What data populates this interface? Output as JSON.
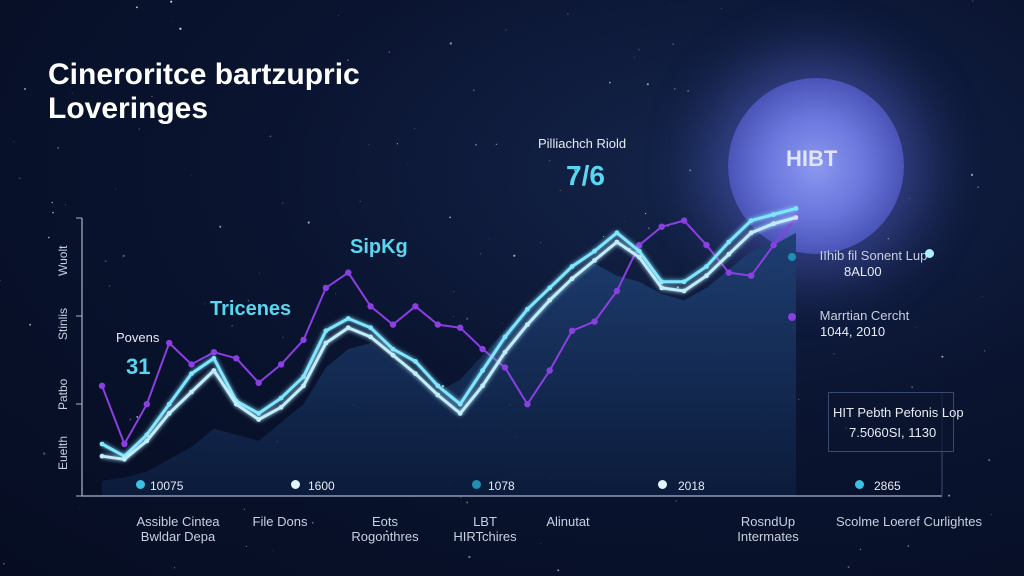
{
  "title_lines": [
    "Cineroritce bartzupric",
    "Loveringes"
  ],
  "moon_label": "HIBT",
  "annotations": {
    "peak_caption": "Pilliachch Riold",
    "peak_value": "7/6",
    "sipkg": "SipKg",
    "tricenes": "Tricenes",
    "povens_label": "Povens",
    "povens_value": "31"
  },
  "legend": [
    {
      "text1": "IIhib fil Sonent Lup",
      "text2": "8AL00",
      "color": "#1f8fb4"
    },
    {
      "text1": "Marrtian Cercht",
      "text2": "1044, 2010",
      "color": "#8a3fe0"
    }
  ],
  "legend_end_dot_color": "#a8f0ff",
  "box": {
    "line1": "HIT Pebth Pefonis Lop",
    "line2": "7.5060SI, 1130"
  },
  "y_labels": [
    "Wuolt",
    "Stinlis",
    "Patbo",
    "Euelth"
  ],
  "x_labels": [
    {
      "l1": "Assible Cintea",
      "l2": "Bwldar Depa"
    },
    {
      "l1": "File Dons",
      "l2": ""
    },
    {
      "l1": "Eots",
      "l2": "Rogonthres"
    },
    {
      "l1": "LBT",
      "l2": "HIRTchires"
    },
    {
      "l1": "Alinutat",
      "l2": ""
    },
    {
      "l1": "RosndUp",
      "l2": "Intermates"
    },
    {
      "l1": "Scolme Loeref Curlightes",
      "l2": ""
    }
  ],
  "bottom_points": [
    {
      "label": "10075",
      "color": "#39c2e6"
    },
    {
      "label": "1600",
      "color": "#dff6ff"
    },
    {
      "label": "1078",
      "color": "#1f8fb4"
    },
    {
      "label": "2018",
      "color": "#dff6ff"
    },
    {
      "label": "2865",
      "color": "#39c2e6"
    }
  ],
  "chart_data": {
    "type": "line",
    "x": [
      0,
      1,
      2,
      3,
      4,
      5,
      6,
      7,
      8,
      9,
      10,
      11,
      12,
      13,
      14,
      15,
      16,
      17,
      18,
      19,
      20,
      21,
      22,
      23,
      24,
      25,
      26,
      27,
      28,
      29,
      30,
      31
    ],
    "ylim": [
      0,
      100
    ],
    "series": [
      {
        "name": "purple",
        "color": "#8a3fe0",
        "values": [
          36,
          17,
          30,
          50,
          43,
          47,
          45,
          37,
          43,
          51,
          68,
          73,
          62,
          56,
          62,
          56,
          55,
          48,
          42,
          30,
          41,
          54,
          57,
          67,
          82,
          88,
          90,
          82,
          73,
          72,
          82,
          91
        ]
      },
      {
        "name": "cyan",
        "color": "#7fe6ff",
        "values": [
          17,
          13,
          20,
          30,
          40,
          45,
          31,
          27,
          32,
          39,
          54,
          58,
          55,
          48,
          44,
          36,
          30,
          41,
          52,
          61,
          68,
          75,
          80,
          86,
          80,
          70,
          70,
          75,
          83,
          90,
          92,
          94
        ]
      },
      {
        "name": "light",
        "color": "#bfeeff",
        "values": [
          13,
          12,
          18,
          27,
          34,
          41,
          30,
          25,
          29,
          36,
          50,
          55,
          52,
          46,
          40,
          33,
          27,
          36,
          47,
          56,
          64,
          71,
          77,
          83,
          78,
          68,
          67,
          72,
          79,
          86,
          89,
          91
        ]
      }
    ],
    "area_values": [
      5,
      6,
      8,
      12,
      16,
      22,
      20,
      18,
      24,
      30,
      42,
      48,
      50,
      44,
      40,
      34,
      38,
      46,
      54,
      60,
      66,
      70,
      76,
      72,
      70,
      66,
      64,
      68,
      74,
      80,
      82,
      86
    ]
  }
}
